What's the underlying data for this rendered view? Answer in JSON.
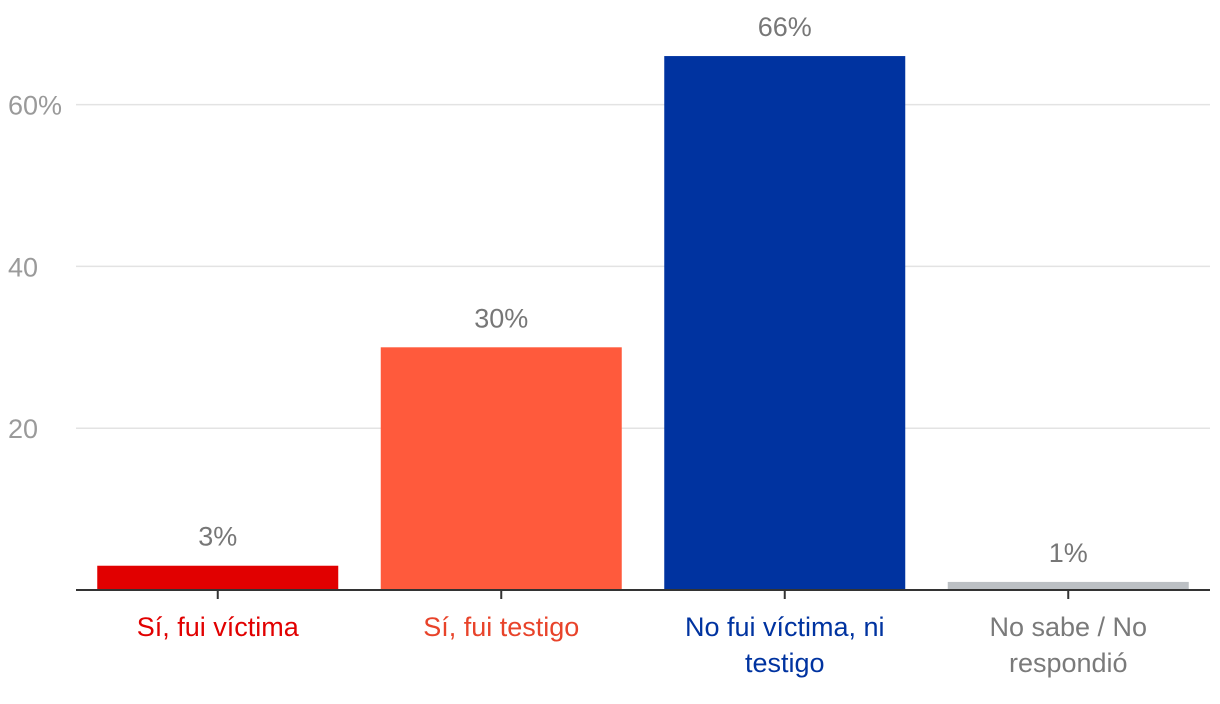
{
  "chart_data": {
    "type": "bar",
    "title": "",
    "xlabel": "",
    "ylabel": "",
    "ylim": [
      0,
      70
    ],
    "y_ticks": [
      {
        "value": 20,
        "label": "20"
      },
      {
        "value": 40,
        "label": "40"
      },
      {
        "value": 60,
        "label": "60%"
      }
    ],
    "grid": true,
    "categories": [
      "Sí, fui víctima",
      "Sí, fui testigo",
      "No fui víctima, ni testigo",
      "No sabe / No respondió"
    ],
    "category_lines": [
      [
        "Sí, fui víctima"
      ],
      [
        "Sí, fui testigo"
      ],
      [
        "No fui víctima, ni",
        "testigo"
      ],
      [
        "No sabe / No",
        "respondió"
      ]
    ],
    "values": [
      3,
      30,
      66,
      1
    ],
    "data_labels": [
      "3%",
      "30%",
      "66%",
      "1%"
    ],
    "bar_colors": [
      "#e10000",
      "#ff5a3c",
      "#0033a0",
      "#bcc0c4"
    ],
    "label_colors": [
      "#e10000",
      "#e8432a",
      "#0033a0",
      "#7a7a7a"
    ]
  }
}
